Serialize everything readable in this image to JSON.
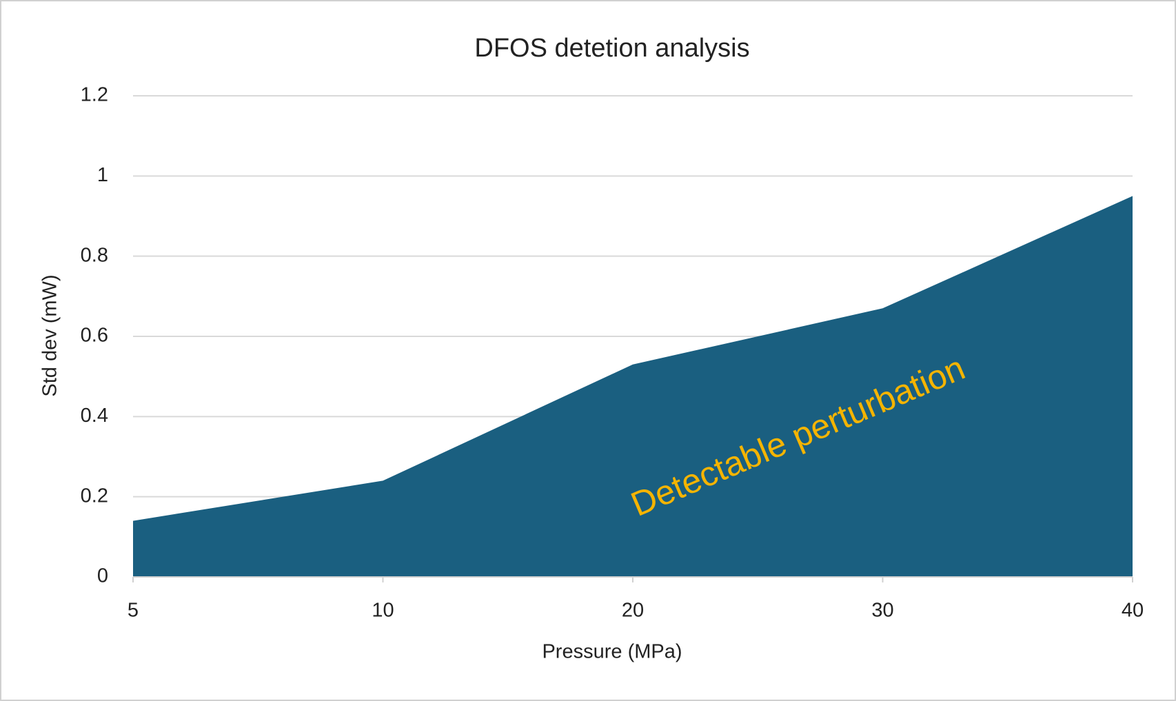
{
  "chart_data": {
    "type": "area",
    "title": "DFOS detetion analysis",
    "x_label": "Pressure (MPa)",
    "y_label": "Std dev (mW)",
    "categories": [
      "5",
      "10",
      "20",
      "30",
      "40"
    ],
    "values": [
      0.14,
      0.24,
      0.53,
      0.67,
      0.95
    ],
    "color": "#1a5f80",
    "ylim": [
      0,
      1.2
    ],
    "yticks": [
      0,
      0.2,
      0.4,
      0.6,
      0.8,
      1,
      1.2
    ],
    "grid": true,
    "annotation": "Detectable perturbation",
    "annotation_color": "#f5b400"
  }
}
